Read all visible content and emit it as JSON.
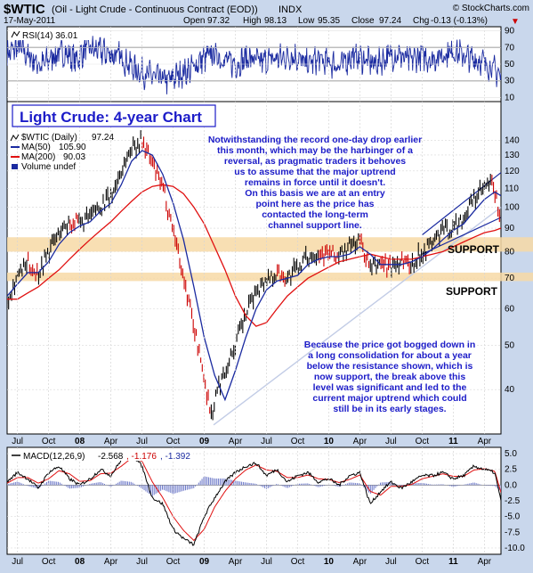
{
  "header": {
    "symbol": "$WTIC",
    "description": "(Oil - Light Crude - Continuous Contract (EOD))",
    "exchange": "INDX",
    "brand": "© StockCharts.com",
    "date": "17-May-2011",
    "open_label": "Open",
    "open": "97.32",
    "high_label": "High",
    "high": "98.13",
    "low_label": "Low",
    "low": "95.35",
    "close_label": "Close",
    "close": "97.24",
    "chg_label": "Chg",
    "chg": "-0.13 (-0.13%)",
    "chg_arrow": "▼"
  },
  "colors": {
    "background": "#c9d7ec",
    "panel": "#ffffff",
    "price_up": "#000000",
    "price_down": "#cc0000",
    "ma50": "#1a2aa0",
    "ma200": "#e01010",
    "support_band": "#f7d9a6",
    "annotation": "#1c1cc8",
    "trend_light": "#c2cce6"
  },
  "chart_data": [
    {
      "type": "line",
      "panel": "rsi",
      "title": "RSI(14) 36.01",
      "series": [
        {
          "name": "RSI(14)",
          "last": 36.01
        }
      ],
      "y_ticks": [
        10,
        30,
        50,
        70,
        90
      ],
      "ylim": [
        5,
        95
      ],
      "reference_lines": [
        30,
        70
      ],
      "values_by_month": [
        62,
        70,
        58,
        48,
        60,
        64,
        55,
        70,
        66,
        62,
        58,
        45,
        38,
        34,
        30,
        38,
        44,
        56,
        62,
        54,
        50,
        58,
        52,
        56,
        58,
        60,
        50,
        55,
        52,
        48,
        60,
        56,
        50,
        58,
        62,
        54,
        60,
        56,
        62,
        66,
        58,
        55,
        48,
        36
      ]
    },
    {
      "type": "line",
      "panel": "price",
      "title": "Light Crude: 4-year Chart",
      "legend": [
        {
          "name": "$WTIC (Daily)",
          "value": "97.24"
        },
        {
          "name": "MA(50)",
          "value": "105.90"
        },
        {
          "name": "MA(200)",
          "value": "90.03"
        },
        {
          "name": "Volume undef",
          "value": ""
        }
      ],
      "x_ticks": [
        "Jul",
        "Oct",
        "08",
        "Apr",
        "Jul",
        "Oct",
        "09",
        "Apr",
        "Jul",
        "Oct",
        "10",
        "Apr",
        "Jul",
        "Oct",
        "11",
        "Apr"
      ],
      "x_tick_months": [
        6,
        9,
        12,
        15,
        18,
        21,
        24,
        27,
        30,
        33,
        36,
        39,
        42,
        45,
        48,
        51
      ],
      "x_range_months": [
        5.0,
        52.6
      ],
      "y_ticks": [
        40,
        50,
        60,
        70,
        80,
        90,
        100,
        110,
        120,
        130,
        140
      ],
      "log_scale": true,
      "ylim": [
        32,
        150
      ],
      "price_path": [
        [
          5,
          63
        ],
        [
          6,
          71
        ],
        [
          7,
          75
        ],
        [
          8,
          72
        ],
        [
          9,
          80
        ],
        [
          10,
          88
        ],
        [
          11,
          93
        ],
        [
          12,
          92
        ],
        [
          13,
          95
        ],
        [
          14,
          101
        ],
        [
          15,
          105
        ],
        [
          16,
          120
        ],
        [
          17,
          135
        ],
        [
          18,
          140
        ],
        [
          19,
          124
        ],
        [
          20,
          110
        ],
        [
          21,
          90
        ],
        [
          22,
          70
        ],
        [
          23,
          55
        ],
        [
          24,
          42
        ],
        [
          24.7,
          35
        ],
        [
          25.3,
          40
        ],
        [
          26,
          44
        ],
        [
          27,
          50
        ],
        [
          28,
          58
        ],
        [
          29,
          66
        ],
        [
          30,
          70
        ],
        [
          31,
          72
        ],
        [
          32,
          70
        ],
        [
          33,
          74
        ],
        [
          34,
          78
        ],
        [
          35,
          80
        ],
        [
          36,
          79
        ],
        [
          37,
          78
        ],
        [
          38,
          82
        ],
        [
          39,
          85
        ],
        [
          40,
          73
        ],
        [
          41,
          76
        ],
        [
          42,
          74
        ],
        [
          43,
          77
        ],
        [
          44,
          75
        ],
        [
          45,
          80
        ],
        [
          46,
          84
        ],
        [
          47,
          89
        ],
        [
          48,
          90
        ],
        [
          49,
          95
        ],
        [
          50,
          104
        ],
        [
          51,
          110
        ],
        [
          51.8,
          113
        ],
        [
          52.3,
          99
        ],
        [
          52.6,
          97.24
        ]
      ],
      "ma50_path": [
        [
          5,
          64
        ],
        [
          6,
          68
        ],
        [
          7,
          72
        ],
        [
          8,
          72
        ],
        [
          9,
          76
        ],
        [
          10,
          83
        ],
        [
          11,
          88
        ],
        [
          12,
          91
        ],
        [
          13,
          93
        ],
        [
          14,
          98
        ],
        [
          15,
          102
        ],
        [
          16,
          112
        ],
        [
          17,
          126
        ],
        [
          18,
          133
        ],
        [
          19,
          130
        ],
        [
          20,
          118
        ],
        [
          21,
          102
        ],
        [
          22,
          85
        ],
        [
          23,
          67
        ],
        [
          24,
          52
        ],
        [
          25,
          43
        ],
        [
          26,
          38
        ],
        [
          27,
          44
        ],
        [
          28,
          52
        ],
        [
          29,
          60
        ],
        [
          30,
          66
        ],
        [
          31,
          69
        ],
        [
          32,
          70
        ],
        [
          33,
          71
        ],
        [
          34,
          75
        ],
        [
          35,
          77
        ],
        [
          36,
          78
        ],
        [
          37,
          78
        ],
        [
          38,
          79
        ],
        [
          39,
          82
        ],
        [
          40,
          79
        ],
        [
          41,
          75
        ],
        [
          42,
          75
        ],
        [
          43,
          75
        ],
        [
          44,
          76
        ],
        [
          45,
          78
        ],
        [
          46,
          81
        ],
        [
          47,
          85
        ],
        [
          48,
          89
        ],
        [
          49,
          92
        ],
        [
          50,
          98
        ],
        [
          51,
          104
        ],
        [
          52,
          108
        ],
        [
          52.6,
          105.9
        ]
      ],
      "ma200_path": [
        [
          5,
          63
        ],
        [
          6,
          63
        ],
        [
          7,
          65
        ],
        [
          8,
          67
        ],
        [
          9,
          70
        ],
        [
          10,
          73
        ],
        [
          11,
          77
        ],
        [
          12,
          81
        ],
        [
          13,
          85
        ],
        [
          14,
          89
        ],
        [
          15,
          93
        ],
        [
          16,
          98
        ],
        [
          17,
          103
        ],
        [
          18,
          108
        ],
        [
          19,
          111
        ],
        [
          20,
          112
        ],
        [
          21,
          111
        ],
        [
          22,
          107
        ],
        [
          23,
          100
        ],
        [
          24,
          92
        ],
        [
          25,
          82
        ],
        [
          26,
          73
        ],
        [
          27,
          64
        ],
        [
          28,
          58
        ],
        [
          29,
          55
        ],
        [
          30,
          56
        ],
        [
          31,
          60
        ],
        [
          32,
          64
        ],
        [
          33,
          67
        ],
        [
          34,
          70
        ],
        [
          35,
          72
        ],
        [
          36,
          74
        ],
        [
          37,
          76
        ],
        [
          38,
          77
        ],
        [
          39,
          78
        ],
        [
          40,
          79
        ],
        [
          41,
          78
        ],
        [
          42,
          77
        ],
        [
          43,
          77
        ],
        [
          44,
          77
        ],
        [
          45,
          78
        ],
        [
          46,
          79
        ],
        [
          47,
          80
        ],
        [
          48,
          82
        ],
        [
          49,
          84
        ],
        [
          50,
          86
        ],
        [
          51,
          88
        ],
        [
          52,
          89
        ],
        [
          52.6,
          90.03
        ]
      ],
      "support_bands": [
        {
          "label": "SUPPORT",
          "low": 80,
          "high": 86
        },
        {
          "label": "SUPPORT",
          "low": 69,
          "high": 72
        }
      ],
      "trend_lines": [
        {
          "from": [
            24.9,
            33.5
          ],
          "to": [
            52.6,
            100
          ]
        },
        {
          "from": [
            45,
            79
          ],
          "to": [
            52.6,
            95
          ]
        },
        {
          "from": [
            45,
            87
          ],
          "to": [
            52.6,
            119
          ]
        }
      ],
      "annotations": [
        "Notwithstanding the record one-day drop earlier",
        "this month, which may be the harbinger of a",
        "reversal, as pragmatic traders it behoves",
        "us to assume that the major uptrend",
        "remains in force until it doesn't.",
        "On this basis we are at an entry",
        "point here as the price has",
        "contacted the long-term",
        "channel support line.",
        "Because the price got bogged down in",
        "a long consolidation for about a year",
        "below the resistance shown, which is",
        "now support, the break above this",
        "level was significant and led to the",
        "current major uptrend which could",
        "still be in its early stages."
      ]
    },
    {
      "type": "line",
      "panel": "macd",
      "title": "MACD(12,26,9)",
      "values_text": [
        "-2.568",
        ", -1.176",
        ", -1.392"
      ],
      "series": [
        {
          "name": "MACD",
          "last": -2.568
        },
        {
          "name": "Signal",
          "last": -1.176
        },
        {
          "name": "Histogram",
          "last": -1.392
        }
      ],
      "y_ticks": [
        5.0,
        2.5,
        0.0,
        -2.5,
        -5.0,
        -7.5,
        -10.0
      ],
      "y_tick_labels": [
        "5.0",
        "2.5",
        "0.0",
        "-2.5",
        "-5.0",
        "-7.5",
        "-10.0"
      ],
      "ylim": [
        -11,
        6
      ],
      "macd_path": [
        [
          5,
          0.5
        ],
        [
          6,
          2
        ],
        [
          7,
          1
        ],
        [
          8,
          -0.5
        ],
        [
          9,
          2
        ],
        [
          10,
          3
        ],
        [
          11,
          1
        ],
        [
          12,
          0
        ],
        [
          13,
          1
        ],
        [
          14,
          2.5
        ],
        [
          15,
          1.5
        ],
        [
          16,
          4
        ],
        [
          17,
          5
        ],
        [
          18,
          3
        ],
        [
          19,
          -2
        ],
        [
          20,
          -3
        ],
        [
          21,
          -7
        ],
        [
          22,
          -8.5
        ],
        [
          23,
          -9.5
        ],
        [
          24,
          -5
        ],
        [
          25,
          -2
        ],
        [
          26,
          0.5
        ],
        [
          27,
          2
        ],
        [
          28,
          3
        ],
        [
          29,
          3.5
        ],
        [
          30,
          1.5
        ],
        [
          31,
          2.5
        ],
        [
          32,
          0.5
        ],
        [
          33,
          1.5
        ],
        [
          34,
          2
        ],
        [
          35,
          0.5
        ],
        [
          36,
          1
        ],
        [
          37,
          0
        ],
        [
          38,
          1.5
        ],
        [
          39,
          2
        ],
        [
          40,
          -3
        ],
        [
          41,
          -1
        ],
        [
          42,
          0.5
        ],
        [
          43,
          -0.5
        ],
        [
          44,
          0.5
        ],
        [
          45,
          1.5
        ],
        [
          46,
          1.5
        ],
        [
          47,
          2
        ],
        [
          48,
          1
        ],
        [
          49,
          1.5
        ],
        [
          50,
          3
        ],
        [
          51,
          2.5
        ],
        [
          52,
          2
        ],
        [
          52.6,
          -2.568
        ]
      ],
      "signal_path": [
        [
          5,
          0.3
        ],
        [
          6,
          1.2
        ],
        [
          7,
          1.2
        ],
        [
          8,
          0.3
        ],
        [
          9,
          1
        ],
        [
          10,
          2.3
        ],
        [
          11,
          1.8
        ],
        [
          12,
          0.6
        ],
        [
          13,
          0.7
        ],
        [
          14,
          1.8
        ],
        [
          15,
          1.9
        ],
        [
          16,
          3
        ],
        [
          17,
          4.3
        ],
        [
          18,
          3.8
        ],
        [
          19,
          0.5
        ],
        [
          20,
          -2
        ],
        [
          21,
          -5
        ],
        [
          22,
          -7.2
        ],
        [
          23,
          -8.8
        ],
        [
          24,
          -7
        ],
        [
          25,
          -3.5
        ],
        [
          26,
          -1
        ],
        [
          27,
          1
        ],
        [
          28,
          2.4
        ],
        [
          29,
          3.2
        ],
        [
          30,
          2.4
        ],
        [
          31,
          2.2
        ],
        [
          32,
          1.2
        ],
        [
          33,
          1.2
        ],
        [
          34,
          1.6
        ],
        [
          35,
          1
        ],
        [
          36,
          0.9
        ],
        [
          37,
          0.4
        ],
        [
          38,
          0.9
        ],
        [
          39,
          1.6
        ],
        [
          40,
          -1
        ],
        [
          41,
          -1.6
        ],
        [
          42,
          -0.2
        ],
        [
          43,
          -0.2
        ],
        [
          44,
          0.1
        ],
        [
          45,
          1
        ],
        [
          46,
          1.4
        ],
        [
          47,
          1.8
        ],
        [
          48,
          1.4
        ],
        [
          49,
          1.4
        ],
        [
          50,
          2.4
        ],
        [
          51,
          2.6
        ],
        [
          52,
          2.2
        ],
        [
          52.6,
          -1.176
        ]
      ]
    }
  ]
}
